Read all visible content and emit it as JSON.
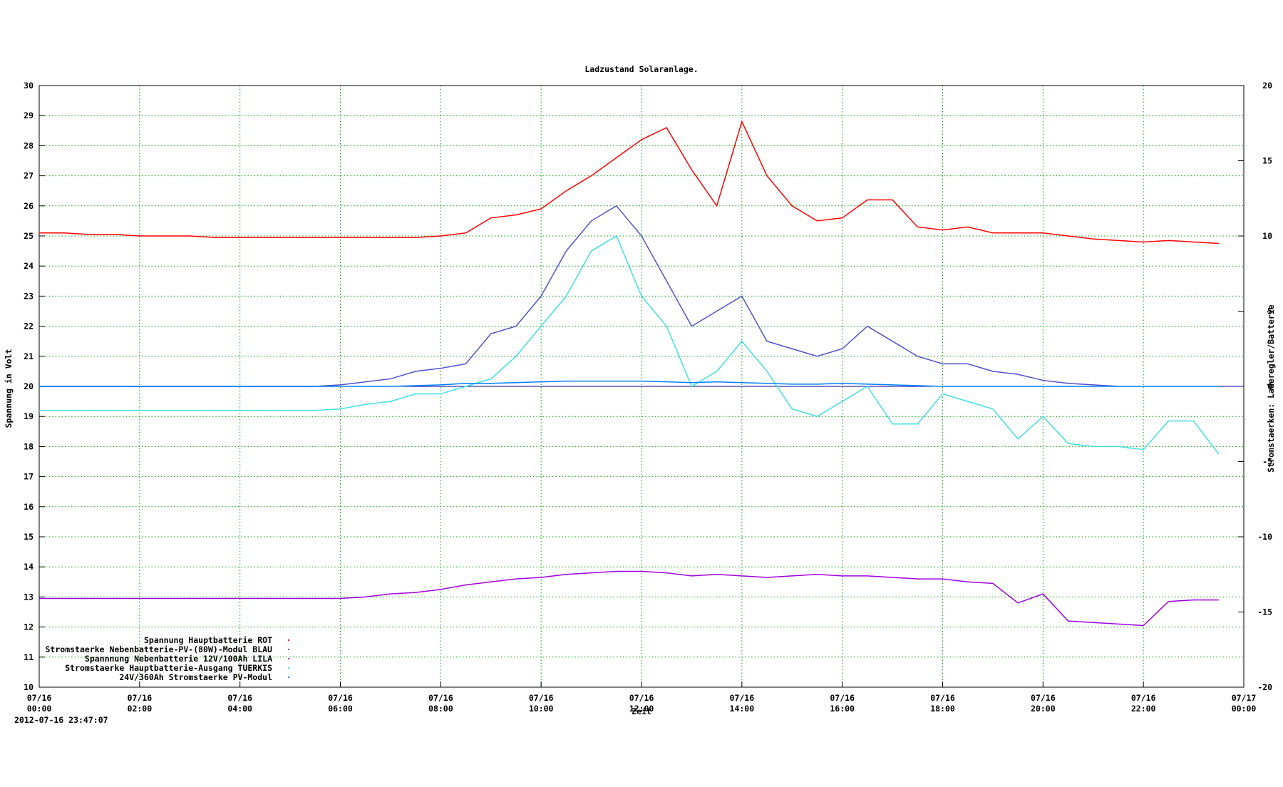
{
  "chart_data": {
    "type": "line",
    "title": "Ladzustand Solaranlage.",
    "xlabel": "Zeit",
    "ylabel": "Spannung in Volt",
    "y2label": "Stromstaerken: Laderegler/Batterie",
    "timestamp": "2012-07-16 23:47:07",
    "grid": true,
    "legend": "bottom left",
    "xlim": [
      0,
      24
    ],
    "xticks": [
      {
        "value": 0,
        "label": "07/16\n00:00"
      },
      {
        "value": 2,
        "label": "07/16\n02:00"
      },
      {
        "value": 4,
        "label": "07/16\n04:00"
      },
      {
        "value": 6,
        "label": "07/16\n06:00"
      },
      {
        "value": 8,
        "label": "07/16\n08:00"
      },
      {
        "value": 10,
        "label": "07/16\n10:00"
      },
      {
        "value": 12,
        "label": "07/16\n12:00"
      },
      {
        "value": 14,
        "label": "07/16\n14:00"
      },
      {
        "value": 16,
        "label": "07/16\n16:00"
      },
      {
        "value": 18,
        "label": "07/16\n18:00"
      },
      {
        "value": 20,
        "label": "07/16\n20:00"
      },
      {
        "value": 22,
        "label": "07/16\n22:00"
      },
      {
        "value": 24,
        "label": "07/17\n00:00"
      }
    ],
    "ylim": [
      10,
      30
    ],
    "yticks": [
      10,
      11,
      12,
      13,
      14,
      15,
      16,
      17,
      18,
      19,
      20,
      21,
      22,
      23,
      24,
      25,
      26,
      27,
      28,
      29,
      30
    ],
    "y2lim": [
      -20,
      20
    ],
    "y2ticks": [
      -20,
      -15,
      -10,
      -5,
      0,
      5,
      10,
      15,
      20
    ],
    "x": [
      0,
      0.5,
      1,
      1.5,
      2,
      2.5,
      3,
      3.5,
      4,
      4.5,
      5,
      5.5,
      6,
      6.5,
      7,
      7.5,
      8,
      8.5,
      9,
      9.5,
      10,
      10.5,
      11,
      11.5,
      12,
      12.5,
      13,
      13.5,
      14,
      14.5,
      15,
      15.5,
      16,
      16.5,
      17,
      17.5,
      18,
      18.5,
      19,
      19.5,
      20,
      20.5,
      21,
      21.5,
      22,
      22.5,
      23,
      23.5,
      24
    ],
    "series": [
      {
        "name": "Spannung Hauptbatterie ROT",
        "color": "#ff0000",
        "axis": "y",
        "values": [
          25.1,
          25.1,
          25.05,
          25.05,
          25.0,
          25.0,
          25.0,
          24.95,
          24.95,
          24.95,
          24.95,
          24.95,
          24.95,
          24.95,
          24.95,
          24.95,
          25.0,
          25.1,
          25.6,
          25.7,
          25.9,
          26.5,
          27.0,
          27.6,
          28.2,
          28.6,
          27.2,
          26.0,
          28.8,
          27.0,
          26.0,
          25.5,
          25.6,
          26.2,
          26.2,
          25.3,
          25.2,
          25.3,
          25.1,
          25.1,
          25.1,
          25.0,
          24.9,
          24.85,
          24.8,
          24.85,
          24.8,
          24.75,
          null
        ]
      },
      {
        "name": "Stromstaerke Nebenbatterie-PV-(80W)-Modul BLAU",
        "color": "#5050d0",
        "axis": "y2",
        "values": [
          0,
          0,
          0,
          0,
          0,
          0,
          0,
          0,
          0,
          0,
          0,
          0,
          0.1,
          0.3,
          0.5,
          1.0,
          1.2,
          1.5,
          3.5,
          4,
          6,
          9,
          11,
          12,
          10,
          7,
          4,
          5,
          6,
          3,
          2.5,
          2,
          2.5,
          4,
          3,
          2,
          1.5,
          1.5,
          1,
          0.8,
          0.4,
          0.2,
          0.1,
          0,
          null,
          null,
          null,
          null,
          null
        ]
      },
      {
        "name": "Spannnung Nebenbatterie 12V/100Ah LILA",
        "color": "#a000e0",
        "axis": "y",
        "values": [
          12.95,
          12.95,
          12.95,
          12.95,
          12.95,
          12.95,
          12.95,
          12.95,
          12.95,
          12.95,
          12.95,
          12.95,
          12.95,
          13.0,
          13.1,
          13.15,
          13.25,
          13.4,
          13.5,
          13.6,
          13.65,
          13.75,
          13.8,
          13.85,
          13.85,
          13.8,
          13.7,
          13.75,
          13.7,
          13.65,
          13.7,
          13.75,
          13.7,
          13.7,
          13.65,
          13.6,
          13.6,
          13.5,
          13.45,
          12.8,
          13.1,
          12.2,
          12.15,
          12.1,
          12.05,
          12.85,
          12.9,
          12.9,
          null
        ]
      },
      {
        "name": "Stromstaerke Hauptbatterie-Ausgang TUERKIS",
        "color": "#40e0e0",
        "axis": "y2",
        "values": [
          -1.6,
          -1.6,
          -1.6,
          -1.6,
          -1.6,
          -1.6,
          -1.6,
          -1.6,
          -1.6,
          -1.6,
          -1.6,
          -1.6,
          -1.5,
          -1.2,
          -1.0,
          -0.5,
          -0.5,
          0,
          0.5,
          2,
          4,
          6,
          9,
          10,
          6,
          4,
          0,
          1,
          3,
          1,
          -1.5,
          -2,
          -1,
          0,
          -2.5,
          -2.5,
          -0.5,
          -1.0,
          -1.5,
          -3.5,
          -2,
          -3.8,
          -4,
          -4,
          -4.2,
          -2.3,
          -2.3,
          -4.5,
          null
        ]
      },
      {
        "name": "24V/360Ah Stromstaerke PV-Modul",
        "color": "#0080ff",
        "axis": "y2",
        "values": [
          0,
          0,
          0,
          0,
          0,
          0,
          0,
          0,
          0,
          0,
          0,
          0,
          0,
          0,
          0,
          0.05,
          0.1,
          0.2,
          0.2,
          0.25,
          0.3,
          0.35,
          0.35,
          0.35,
          0.35,
          0.3,
          0.25,
          0.3,
          0.25,
          0.2,
          0.15,
          0.15,
          0.2,
          0.15,
          0.1,
          0.05,
          0,
          0,
          0,
          0,
          0,
          0,
          0,
          0,
          0,
          0,
          0,
          0,
          null
        ]
      }
    ]
  }
}
